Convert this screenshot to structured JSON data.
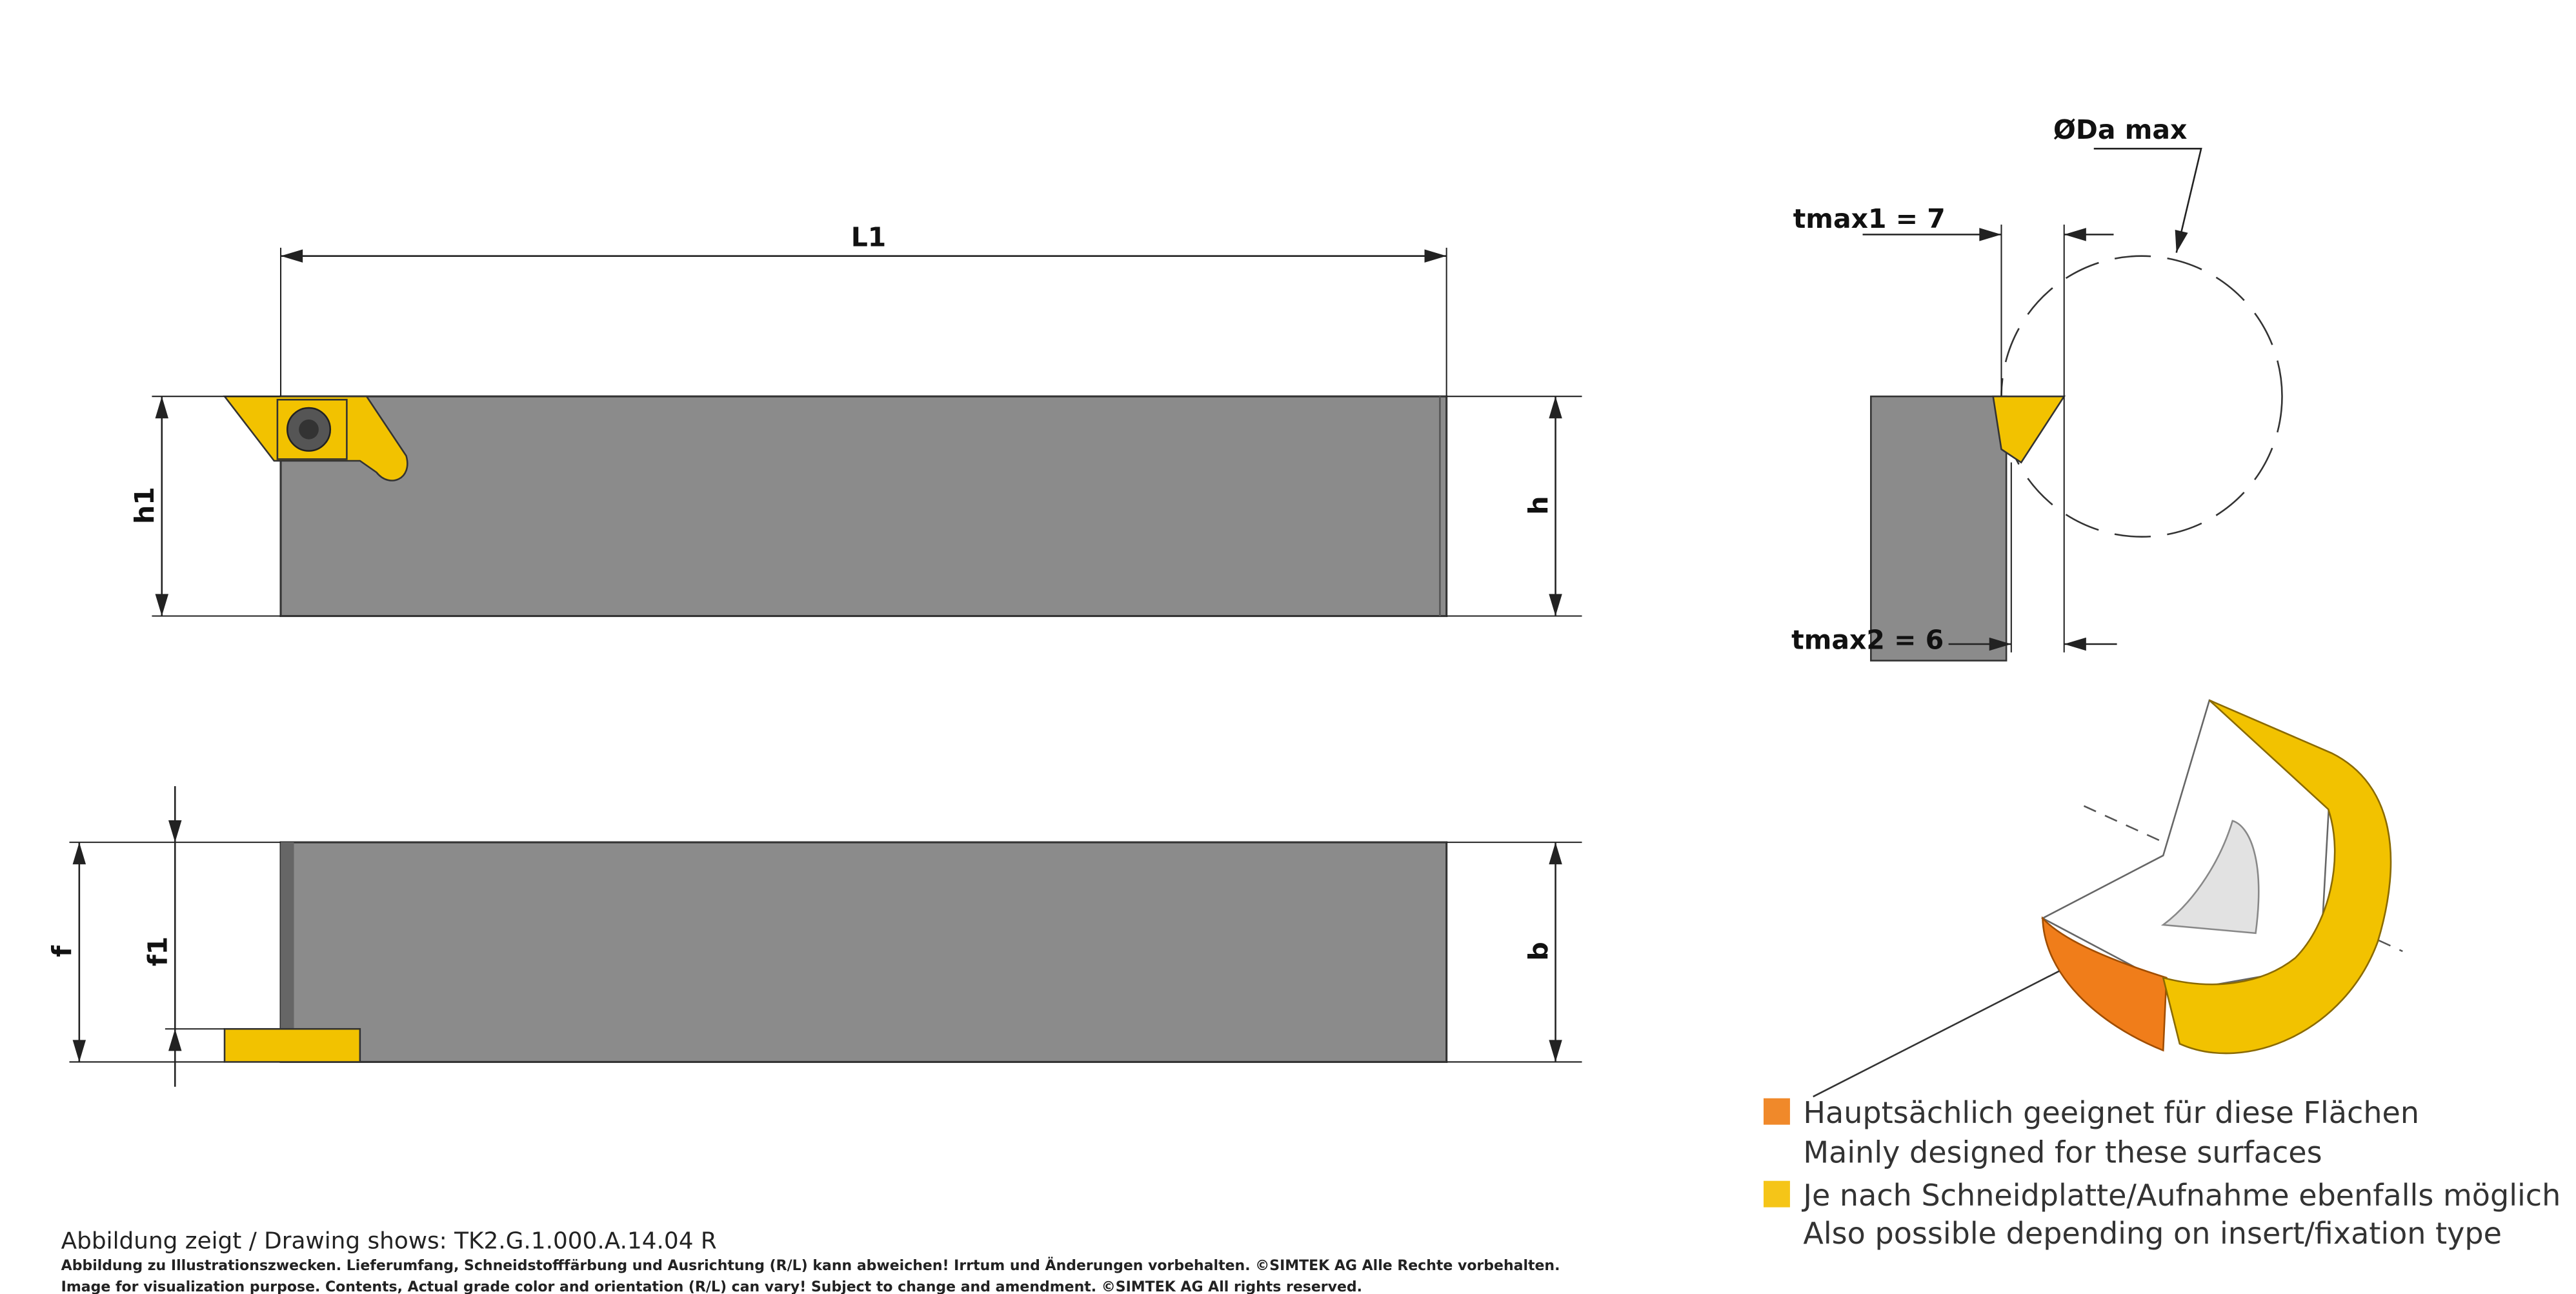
{
  "top_view": {
    "length": "L1",
    "height": "h1",
    "shank_height": "h"
  },
  "front_view": {
    "offset": "f",
    "offset_1": "f1",
    "width": "b"
  },
  "side_view": {
    "diameter": "ØDa max",
    "tmax1": "tmax1 = 7",
    "tmax2": "tmax2 = 6"
  },
  "legend": [
    {
      "lines": [
        "Hauptsächlich geeignet für diese Flächen",
        "Mainly designed for these surfaces"
      ]
    },
    {
      "lines": [
        "Je nach Schneidplatte/Aufnahme ebenfalls möglich",
        "Also possible depending on insert/fixation type"
      ]
    }
  ],
  "caption": {
    "title": "Abbildung zeigt / Drawing shows: TK2.G.1.000.A.14.04 R",
    "notes": [
      "Abbildung zu Illustrationszwecken. Lieferumfang, Schneidstofffärbung und Ausrichtung (R/L) kann abweichen! Irrtum und Änderungen vorbehalten. ©SIMTEK AG Alle Rechte vorbehalten.",
      "Image for visualization purpose. Contents, Actual grade color and orientation (R/L) can vary! Subject to change and amendment. ©SIMTEK AG All rights reserved."
    ]
  }
}
